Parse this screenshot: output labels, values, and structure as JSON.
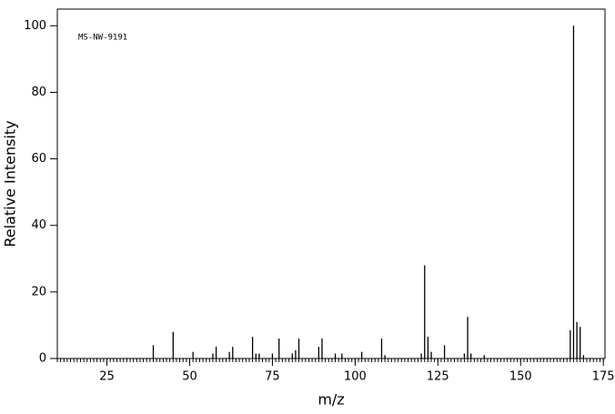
{
  "chart_data": {
    "type": "bar",
    "annotation": "MS-NW-9191",
    "x_label": "m/z",
    "y_label": "Relative Intensity",
    "x": [
      39,
      45,
      51,
      57,
      58,
      62,
      63,
      69,
      70,
      71,
      75,
      77,
      81,
      82,
      83,
      89,
      90,
      94,
      96,
      102,
      108,
      109,
      120,
      121,
      122,
      123,
      127,
      133,
      134,
      135,
      139,
      165,
      166,
      167,
      168,
      169
    ],
    "values": [
      4,
      8,
      2,
      1.5,
      3.5,
      2,
      3.5,
      6.5,
      1.5,
      1.5,
      1.5,
      6,
      1.5,
      2.5,
      6,
      3.5,
      6,
      1.5,
      1.5,
      2,
      6,
      1,
      1.5,
      28,
      6.5,
      2,
      4,
      1.5,
      12.5,
      1.5,
      1,
      8.5,
      100,
      11,
      9.5,
      1
    ],
    "color": "#000000",
    "xlim": [
      10,
      175.5
    ],
    "xticks": [
      25,
      50,
      75,
      100,
      125,
      150,
      175
    ],
    "ylim": [
      0,
      105
    ],
    "yticks": [
      0,
      20,
      40,
      60,
      80,
      100
    ]
  }
}
